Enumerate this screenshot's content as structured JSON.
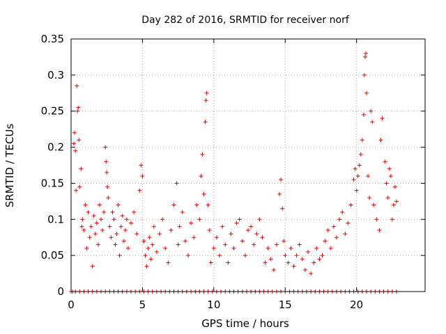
{
  "chart_data": {
    "type": "scatter",
    "title": "Day 282 of 2016, SRMTID for receiver norf",
    "xlabel": "GPS time / hours",
    "ylabel": "SRMTID / TECUs",
    "xlim": [
      0,
      24.8
    ],
    "ylim": [
      0,
      0.35
    ],
    "xticks": [
      0,
      5,
      10,
      15,
      20
    ],
    "xtick_labels": [
      "0",
      "5",
      "10",
      "15",
      "20"
    ],
    "yticks": [
      0,
      0.05,
      0.1,
      0.15,
      0.2,
      0.25,
      0.3,
      0.35
    ],
    "ytick_labels": [
      "0",
      "0.05",
      "0.1",
      "0.15",
      "0.2",
      "0.25",
      "0.3",
      "0.35"
    ],
    "grid": true,
    "marker": "plus",
    "color": "#e00000",
    "series": [
      {
        "name": "SRMTID",
        "points": [
          [
            0.1,
            0.0
          ],
          [
            0.2,
            0.205
          ],
          [
            0.25,
            0.22
          ],
          [
            0.3,
            0.195
          ],
          [
            0.35,
            0.14
          ],
          [
            0.4,
            0.285
          ],
          [
            0.45,
            0.25
          ],
          [
            0.5,
            0.255
          ],
          [
            0.55,
            0.21
          ],
          [
            0.6,
            0.145
          ],
          [
            0.7,
            0.17
          ],
          [
            0.75,
            0.09
          ],
          [
            0.8,
            0.1
          ],
          [
            0.9,
            0.085
          ],
          [
            1.0,
            0.12
          ],
          [
            1.1,
            0.06
          ],
          [
            1.2,
            0.11
          ],
          [
            1.3,
            0.075
          ],
          [
            1.4,
            0.09
          ],
          [
            1.5,
            0.035
          ],
          [
            1.6,
            0.105
          ],
          [
            1.7,
            0.08
          ],
          [
            1.8,
            0.095
          ],
          [
            1.9,
            0.065
          ],
          [
            2.0,
            0.12
          ],
          [
            2.1,
            0.1
          ],
          [
            2.2,
            0.085
          ],
          [
            2.3,
            0.11
          ],
          [
            2.4,
            0.2
          ],
          [
            2.45,
            0.18
          ],
          [
            2.5,
            0.165
          ],
          [
            2.55,
            0.145
          ],
          [
            2.6,
            0.13
          ],
          [
            2.7,
            0.09
          ],
          [
            2.8,
            0.075
          ],
          [
            2.9,
            0.11
          ],
          [
            3.0,
            0.1
          ],
          [
            3.1,
            0.065
          ],
          [
            3.2,
            0.08
          ],
          [
            3.3,
            0.12
          ],
          [
            3.4,
            0.05
          ],
          [
            3.5,
            0.09
          ],
          [
            3.6,
            0.105
          ],
          [
            3.7,
            0.07
          ],
          [
            3.8,
            0.085
          ],
          [
            3.9,
            0.1
          ],
          [
            4.0,
            0.06
          ],
          [
            4.2,
            0.095
          ],
          [
            4.4,
            0.11
          ],
          [
            4.6,
            0.08
          ],
          [
            4.8,
            0.14
          ],
          [
            4.9,
            0.175
          ],
          [
            5.0,
            0.16
          ],
          [
            5.1,
            0.07
          ],
          [
            5.2,
            0.05
          ],
          [
            5.3,
            0.035
          ],
          [
            5.4,
            0.06
          ],
          [
            5.5,
            0.075
          ],
          [
            5.6,
            0.045
          ],
          [
            5.7,
            0.065
          ],
          [
            5.8,
            0.09
          ],
          [
            6.0,
            0.055
          ],
          [
            6.2,
            0.08
          ],
          [
            6.4,
            0.1
          ],
          [
            6.6,
            0.06
          ],
          [
            6.8,
            0.04
          ],
          [
            7.0,
            0.085
          ],
          [
            7.2,
            0.12
          ],
          [
            7.4,
            0.15
          ],
          [
            7.5,
            0.065
          ],
          [
            7.6,
            0.09
          ],
          [
            7.8,
            0.11
          ],
          [
            8.0,
            0.07
          ],
          [
            8.2,
            0.05
          ],
          [
            8.4,
            0.095
          ],
          [
            8.6,
            0.075
          ],
          [
            8.8,
            0.12
          ],
          [
            9.0,
            0.1
          ],
          [
            9.1,
            0.16
          ],
          [
            9.2,
            0.19
          ],
          [
            9.3,
            0.135
          ],
          [
            9.4,
            0.235
          ],
          [
            9.45,
            0.265
          ],
          [
            9.5,
            0.275
          ],
          [
            9.6,
            0.12
          ],
          [
            9.7,
            0.085
          ],
          [
            9.8,
            0.04
          ],
          [
            10.0,
            0.06
          ],
          [
            10.2,
            0.075
          ],
          [
            10.4,
            0.05
          ],
          [
            10.6,
            0.09
          ],
          [
            10.8,
            0.065
          ],
          [
            11.0,
            0.04
          ],
          [
            11.2,
            0.08
          ],
          [
            11.4,
            0.06
          ],
          [
            11.6,
            0.095
          ],
          [
            11.8,
            0.1
          ],
          [
            12.0,
            0.07
          ],
          [
            12.2,
            0.05
          ],
          [
            12.4,
            0.085
          ],
          [
            12.6,
            0.09
          ],
          [
            12.8,
            0.065
          ],
          [
            13.0,
            0.08
          ],
          [
            13.2,
            0.1
          ],
          [
            13.4,
            0.075
          ],
          [
            13.6,
            0.04
          ],
          [
            13.8,
            0.06
          ],
          [
            14.0,
            0.045
          ],
          [
            14.2,
            0.03
          ],
          [
            14.4,
            0.065
          ],
          [
            14.6,
            0.135
          ],
          [
            14.7,
            0.155
          ],
          [
            14.8,
            0.115
          ],
          [
            14.9,
            0.07
          ],
          [
            15.0,
            0.05
          ],
          [
            15.2,
            0.04
          ],
          [
            15.4,
            0.06
          ],
          [
            15.6,
            0.035
          ],
          [
            15.8,
            0.05
          ],
          [
            16.0,
            0.065
          ],
          [
            16.2,
            0.045
          ],
          [
            16.4,
            0.03
          ],
          [
            16.6,
            0.055
          ],
          [
            16.8,
            0.025
          ],
          [
            17.0,
            0.04
          ],
          [
            17.2,
            0.06
          ],
          [
            17.4,
            0.045
          ],
          [
            17.6,
            0.05
          ],
          [
            17.8,
            0.07
          ],
          [
            18.0,
            0.085
          ],
          [
            18.2,
            0.06
          ],
          [
            18.4,
            0.09
          ],
          [
            18.6,
            0.075
          ],
          [
            18.8,
            0.1
          ],
          [
            19.0,
            0.11
          ],
          [
            19.2,
            0.08
          ],
          [
            19.4,
            0.095
          ],
          [
            19.6,
            0.12
          ],
          [
            19.8,
            0.155
          ],
          [
            19.9,
            0.17
          ],
          [
            20.0,
            0.14
          ],
          [
            20.1,
            0.16
          ],
          [
            20.2,
            0.175
          ],
          [
            20.3,
            0.19
          ],
          [
            20.4,
            0.21
          ],
          [
            20.5,
            0.245
          ],
          [
            20.55,
            0.3
          ],
          [
            20.6,
            0.325
          ],
          [
            20.65,
            0.33
          ],
          [
            20.7,
            0.275
          ],
          [
            20.8,
            0.16
          ],
          [
            20.9,
            0.13
          ],
          [
            21.0,
            0.25
          ],
          [
            21.1,
            0.235
          ],
          [
            21.2,
            0.12
          ],
          [
            21.4,
            0.1
          ],
          [
            21.6,
            0.085
          ],
          [
            21.7,
            0.21
          ],
          [
            21.8,
            0.24
          ],
          [
            22.0,
            0.18
          ],
          [
            22.1,
            0.15
          ],
          [
            22.2,
            0.13
          ],
          [
            22.3,
            0.17
          ],
          [
            22.4,
            0.16
          ],
          [
            22.5,
            0.1
          ],
          [
            22.6,
            0.12
          ],
          [
            22.7,
            0.145
          ],
          [
            22.8,
            0.125
          ]
        ]
      }
    ],
    "zero_band": {
      "y": 0,
      "note": "dense row of markers at 0 across 0 to 23 hours",
      "x_values": [
        0.0,
        0.3,
        0.6,
        0.9,
        1.2,
        1.5,
        1.8,
        2.1,
        2.4,
        2.7,
        3.0,
        3.3,
        3.6,
        3.9,
        4.2,
        4.5,
        4.8,
        5.1,
        5.4,
        5.7,
        6.0,
        6.3,
        6.6,
        6.9,
        7.2,
        7.5,
        7.8,
        8.1,
        8.4,
        8.7,
        9.0,
        9.3,
        9.6,
        9.9,
        10.2,
        10.5,
        10.8,
        11.1,
        11.4,
        11.7,
        12.0,
        12.3,
        12.6,
        12.9,
        13.2,
        13.5,
        13.8,
        14.1,
        14.4,
        14.7,
        15.0,
        15.3,
        15.6,
        15.9,
        16.2,
        16.5,
        16.8,
        17.1,
        17.4,
        17.7,
        18.0,
        18.3,
        18.6,
        18.9,
        19.2,
        19.5,
        19.8,
        20.1,
        20.4,
        20.7,
        21.0,
        21.3,
        21.6,
        21.9,
        22.2,
        22.5,
        22.8
      ]
    }
  }
}
